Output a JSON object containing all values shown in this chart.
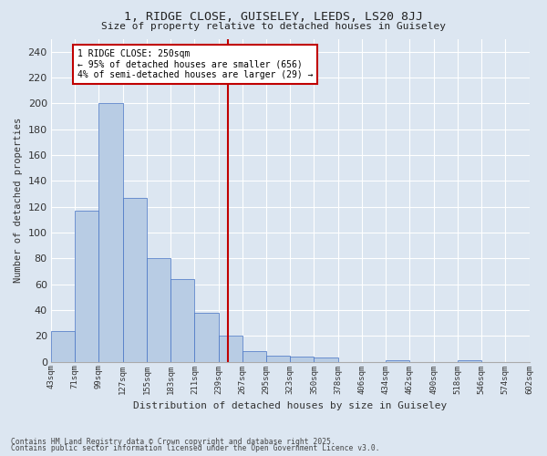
{
  "title1": "1, RIDGE CLOSE, GUISELEY, LEEDS, LS20 8JJ",
  "title2": "Size of property relative to detached houses in Guiseley",
  "xlabel": "Distribution of detached houses by size in Guiseley",
  "ylabel": "Number of detached properties",
  "bar_values": [
    24,
    117,
    200,
    127,
    80,
    64,
    38,
    20,
    8,
    5,
    4,
    3,
    0,
    0,
    1,
    0,
    0,
    1,
    0,
    0
  ],
  "categories": [
    "43sqm",
    "71sqm",
    "99sqm",
    "127sqm",
    "155sqm",
    "183sqm",
    "211sqm",
    "239sqm",
    "267sqm",
    "295sqm",
    "323sqm",
    "350sqm",
    "378sqm",
    "406sqm",
    "434sqm",
    "462sqm",
    "490sqm",
    "518sqm",
    "546sqm",
    "574sqm",
    "602sqm"
  ],
  "bar_color": "#b8cce4",
  "bar_edge_color": "#4472c4",
  "background_color": "#dce6f1",
  "plot_bg_color": "#dce6f1",
  "grid_color": "#ffffff",
  "vline_color": "#c00000",
  "annotation_text": "1 RIDGE CLOSE: 250sqm\n← 95% of detached houses are smaller (656)\n4% of semi-detached houses are larger (29) →",
  "annotation_box_color": "#c00000",
  "ylim": [
    0,
    250
  ],
  "yticks": [
    0,
    20,
    40,
    60,
    80,
    100,
    120,
    140,
    160,
    180,
    200,
    220,
    240
  ],
  "footer1": "Contains HM Land Registry data © Crown copyright and database right 2025.",
  "footer2": "Contains public sector information licensed under the Open Government Licence v3.0."
}
